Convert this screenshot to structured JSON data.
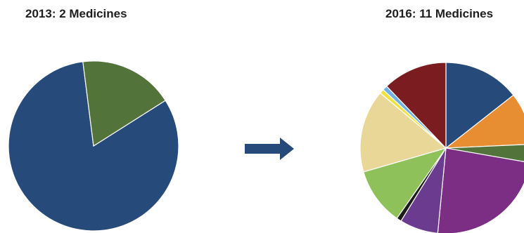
{
  "chart_data": [
    {
      "type": "pie",
      "title": "2013: 2 Medicines",
      "slices": [
        {
          "value": 82,
          "color": "#264a7a"
        },
        {
          "value": 18,
          "color": "#52733a"
        }
      ]
    },
    {
      "type": "pie",
      "title": "2016: 11 Medicines",
      "slices": [
        {
          "value": 14.1,
          "color": "#264a7a"
        },
        {
          "value": 9.7,
          "color": "#e88e32"
        },
        {
          "value": 3.4,
          "color": "#52733a"
        },
        {
          "value": 23.3,
          "color": "#7c2e84"
        },
        {
          "value": 7.1,
          "color": "#6a3b8f"
        },
        {
          "value": 0.9,
          "color": "#1c1c1c"
        },
        {
          "value": 10.6,
          "color": "#8fc15a"
        },
        {
          "value": 15.3,
          "color": "#e8d796"
        },
        {
          "value": 0.8,
          "color": "#f0e23a"
        },
        {
          "value": 0.9,
          "color": "#6fb2e3"
        },
        {
          "value": 11.9,
          "color": "#7b1c20"
        }
      ]
    }
  ],
  "arrow_color": "#264a7a"
}
